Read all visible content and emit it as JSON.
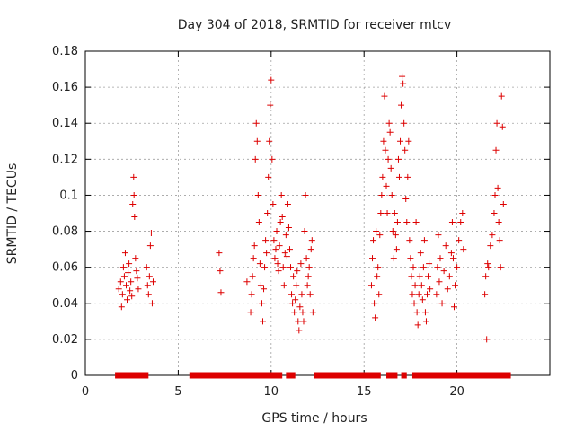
{
  "chart_data": {
    "type": "scatter",
    "title": "Day 304 of 2018, SRMTID for receiver mtcv",
    "xlabel": "GPS time / hours",
    "ylabel": "SRMTID / TECUs",
    "xlim": [
      0,
      25
    ],
    "ylim": [
      0,
      0.18
    ],
    "x_ticks": [
      0,
      5,
      10,
      15,
      20
    ],
    "x_tick_labels": [
      "0",
      "5",
      "10",
      "15",
      "20"
    ],
    "y_ticks": [
      0,
      0.02,
      0.04,
      0.06,
      0.08,
      0.1,
      0.12,
      0.14,
      0.16,
      0.18
    ],
    "y_tick_labels": [
      "0",
      "0.02",
      "0.04",
      "0.06",
      "0.08",
      "0.1",
      "0.12",
      "0.14",
      "0.16",
      "0.18"
    ],
    "grid": true,
    "marker": "plus",
    "series": [
      {
        "name": "SRMTID",
        "color": "#dd0000",
        "points": [
          [
            1.8,
            0.048
          ],
          [
            1.9,
            0.052
          ],
          [
            1.95,
            0.038
          ],
          [
            2.0,
            0.045
          ],
          [
            2.05,
            0.06
          ],
          [
            2.1,
            0.055
          ],
          [
            2.15,
            0.068
          ],
          [
            2.2,
            0.05
          ],
          [
            2.25,
            0.042
          ],
          [
            2.3,
            0.057
          ],
          [
            2.35,
            0.062
          ],
          [
            2.4,
            0.047
          ],
          [
            2.45,
            0.052
          ],
          [
            2.5,
            0.044
          ],
          [
            2.55,
            0.095
          ],
          [
            2.6,
            0.11
          ],
          [
            2.62,
            0.1
          ],
          [
            2.65,
            0.088
          ],
          [
            2.7,
            0.065
          ],
          [
            2.75,
            0.058
          ],
          [
            2.8,
            0.054
          ],
          [
            2.85,
            0.048
          ],
          [
            3.3,
            0.06
          ],
          [
            3.35,
            0.05
          ],
          [
            3.4,
            0.045
          ],
          [
            3.45,
            0.055
          ],
          [
            3.5,
            0.072
          ],
          [
            3.55,
            0.079
          ],
          [
            3.6,
            0.04
          ],
          [
            3.65,
            0.052
          ],
          [
            7.2,
            0.068
          ],
          [
            7.25,
            0.058
          ],
          [
            7.3,
            0.046
          ],
          [
            8.7,
            0.052
          ],
          [
            8.9,
            0.035
          ],
          [
            8.95,
            0.045
          ],
          [
            9.0,
            0.055
          ],
          [
            9.05,
            0.065
          ],
          [
            9.1,
            0.072
          ],
          [
            9.15,
            0.12
          ],
          [
            9.2,
            0.14
          ],
          [
            9.25,
            0.13
          ],
          [
            9.3,
            0.1
          ],
          [
            9.35,
            0.085
          ],
          [
            9.4,
            0.062
          ],
          [
            9.45,
            0.05
          ],
          [
            9.5,
            0.04
          ],
          [
            9.55,
            0.03
          ],
          [
            9.6,
            0.048
          ],
          [
            9.65,
            0.06
          ],
          [
            9.7,
            0.075
          ],
          [
            9.75,
            0.068
          ],
          [
            9.8,
            0.09
          ],
          [
            9.85,
            0.11
          ],
          [
            9.9,
            0.13
          ],
          [
            9.95,
            0.15
          ],
          [
            10.0,
            0.164
          ],
          [
            10.05,
            0.12
          ],
          [
            10.1,
            0.095
          ],
          [
            10.15,
            0.075
          ],
          [
            10.2,
            0.065
          ],
          [
            10.25,
            0.07
          ],
          [
            10.3,
            0.08
          ],
          [
            10.35,
            0.062
          ],
          [
            10.4,
            0.058
          ],
          [
            10.45,
            0.072
          ],
          [
            10.5,
            0.085
          ],
          [
            10.55,
            0.1
          ],
          [
            10.6,
            0.088
          ],
          [
            10.65,
            0.06
          ],
          [
            10.7,
            0.05
          ],
          [
            10.75,
            0.068
          ],
          [
            10.8,
            0.078
          ],
          [
            10.85,
            0.066
          ],
          [
            10.9,
            0.095
          ],
          [
            10.95,
            0.082
          ],
          [
            11.0,
            0.07
          ],
          [
            11.05,
            0.06
          ],
          [
            11.1,
            0.045
          ],
          [
            11.15,
            0.04
          ],
          [
            11.2,
            0.055
          ],
          [
            11.25,
            0.035
          ],
          [
            11.3,
            0.042
          ],
          [
            11.35,
            0.05
          ],
          [
            11.4,
            0.058
          ],
          [
            11.45,
            0.03
          ],
          [
            11.5,
            0.025
          ],
          [
            11.55,
            0.038
          ],
          [
            11.6,
            0.062
          ],
          [
            11.65,
            0.045
          ],
          [
            11.7,
            0.035
          ],
          [
            11.75,
            0.03
          ],
          [
            11.8,
            0.08
          ],
          [
            11.85,
            0.1
          ],
          [
            11.9,
            0.065
          ],
          [
            11.95,
            0.05
          ],
          [
            12.0,
            0.055
          ],
          [
            12.05,
            0.06
          ],
          [
            12.1,
            0.045
          ],
          [
            12.15,
            0.07
          ],
          [
            12.2,
            0.075
          ],
          [
            12.25,
            0.035
          ],
          [
            15.4,
            0.05
          ],
          [
            15.45,
            0.065
          ],
          [
            15.5,
            0.075
          ],
          [
            15.55,
            0.04
          ],
          [
            15.6,
            0.032
          ],
          [
            15.65,
            0.08
          ],
          [
            15.7,
            0.055
          ],
          [
            15.75,
            0.06
          ],
          [
            15.8,
            0.045
          ],
          [
            15.85,
            0.078
          ],
          [
            15.9,
            0.09
          ],
          [
            15.95,
            0.1
          ],
          [
            16.0,
            0.11
          ],
          [
            16.05,
            0.13
          ],
          [
            16.1,
            0.155
          ],
          [
            16.15,
            0.125
          ],
          [
            16.2,
            0.105
          ],
          [
            16.25,
            0.09
          ],
          [
            16.3,
            0.12
          ],
          [
            16.35,
            0.14
          ],
          [
            16.4,
            0.135
          ],
          [
            16.45,
            0.115
          ],
          [
            16.5,
            0.1
          ],
          [
            16.55,
            0.08
          ],
          [
            16.6,
            0.065
          ],
          [
            16.65,
            0.09
          ],
          [
            16.7,
            0.078
          ],
          [
            16.75,
            0.07
          ],
          [
            16.8,
            0.085
          ],
          [
            16.85,
            0.12
          ],
          [
            16.9,
            0.11
          ],
          [
            16.95,
            0.13
          ],
          [
            17.0,
            0.15
          ],
          [
            17.05,
            0.166
          ],
          [
            17.1,
            0.162
          ],
          [
            17.15,
            0.14
          ],
          [
            17.2,
            0.125
          ],
          [
            17.25,
            0.098
          ],
          [
            17.3,
            0.085
          ],
          [
            17.35,
            0.11
          ],
          [
            17.4,
            0.13
          ],
          [
            17.45,
            0.075
          ],
          [
            17.5,
            0.065
          ],
          [
            17.55,
            0.055
          ],
          [
            17.6,
            0.045
          ],
          [
            17.65,
            0.06
          ],
          [
            17.7,
            0.04
          ],
          [
            17.75,
            0.05
          ],
          [
            17.8,
            0.085
          ],
          [
            17.85,
            0.035
          ],
          [
            17.9,
            0.028
          ],
          [
            17.95,
            0.045
          ],
          [
            18.0,
            0.055
          ],
          [
            18.05,
            0.068
          ],
          [
            18.1,
            0.05
          ],
          [
            18.15,
            0.042
          ],
          [
            18.2,
            0.06
          ],
          [
            18.25,
            0.075
          ],
          [
            18.3,
            0.035
          ],
          [
            18.35,
            0.03
          ],
          [
            18.4,
            0.045
          ],
          [
            18.45,
            0.055
          ],
          [
            18.5,
            0.062
          ],
          [
            18.55,
            0.048
          ],
          [
            18.9,
            0.045
          ],
          [
            18.95,
            0.06
          ],
          [
            19.0,
            0.078
          ],
          [
            19.05,
            0.052
          ],
          [
            19.1,
            0.065
          ],
          [
            19.2,
            0.04
          ],
          [
            19.3,
            0.058
          ],
          [
            19.4,
            0.072
          ],
          [
            19.5,
            0.048
          ],
          [
            19.6,
            0.055
          ],
          [
            19.7,
            0.068
          ],
          [
            19.75,
            0.085
          ],
          [
            19.8,
            0.065
          ],
          [
            19.85,
            0.038
          ],
          [
            19.9,
            0.05
          ],
          [
            20.0,
            0.06
          ],
          [
            20.1,
            0.075
          ],
          [
            20.2,
            0.085
          ],
          [
            20.3,
            0.09
          ],
          [
            20.35,
            0.07
          ],
          [
            21.5,
            0.045
          ],
          [
            21.55,
            0.055
          ],
          [
            21.6,
            0.02
          ],
          [
            21.65,
            0.062
          ],
          [
            21.7,
            0.06
          ],
          [
            21.8,
            0.072
          ],
          [
            21.9,
            0.078
          ],
          [
            22.0,
            0.09
          ],
          [
            22.05,
            0.1
          ],
          [
            22.1,
            0.125
          ],
          [
            22.15,
            0.14
          ],
          [
            22.2,
            0.104
          ],
          [
            22.25,
            0.085
          ],
          [
            22.3,
            0.075
          ],
          [
            22.35,
            0.06
          ],
          [
            22.4,
            0.155
          ],
          [
            22.45,
            0.138
          ],
          [
            22.5,
            0.095
          ]
        ]
      }
    ],
    "zero_segments": [
      [
        1.6,
        3.4
      ],
      [
        5.6,
        10.6
      ],
      [
        10.8,
        11.3
      ],
      [
        12.3,
        15.9
      ],
      [
        16.2,
        16.8
      ],
      [
        17.0,
        17.3
      ],
      [
        17.6,
        22.9
      ]
    ]
  }
}
